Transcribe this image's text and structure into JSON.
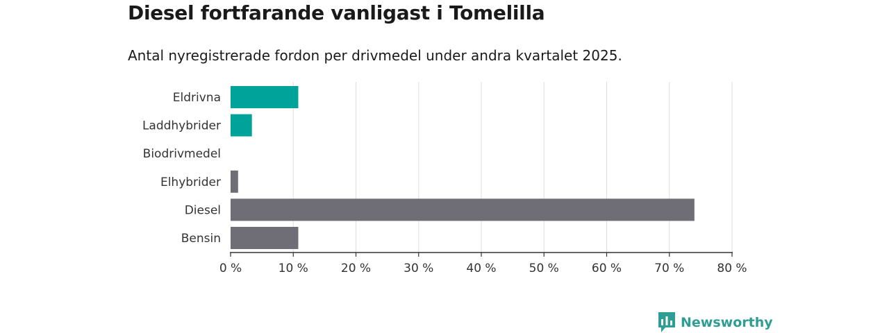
{
  "chart_data": {
    "type": "bar",
    "orientation": "horizontal",
    "title": "Diesel fortfarande vanligast i Tomelilla",
    "subtitle": "Antal nyregistrerade fordon per drivmedel under andra kvartalet 2025.",
    "categories": [
      "Eldrivna",
      "Laddhybrider",
      "Biodrivmedel",
      "Elhybrider",
      "Diesel",
      "Bensin"
    ],
    "values": [
      10.8,
      3.4,
      0,
      1.2,
      74.0,
      10.8
    ],
    "bar_colors": [
      "#00a39a",
      "#00a39a",
      "#00a39a",
      "#6f6e76",
      "#6f6e76",
      "#6f6e76"
    ],
    "xlim": [
      0,
      80
    ],
    "xticks": [
      0,
      10,
      20,
      30,
      40,
      50,
      60,
      70,
      80
    ],
    "tick_suffix": " %",
    "grid": true
  },
  "brand": {
    "name": "Newsworthy",
    "color": "#2e9e94"
  }
}
